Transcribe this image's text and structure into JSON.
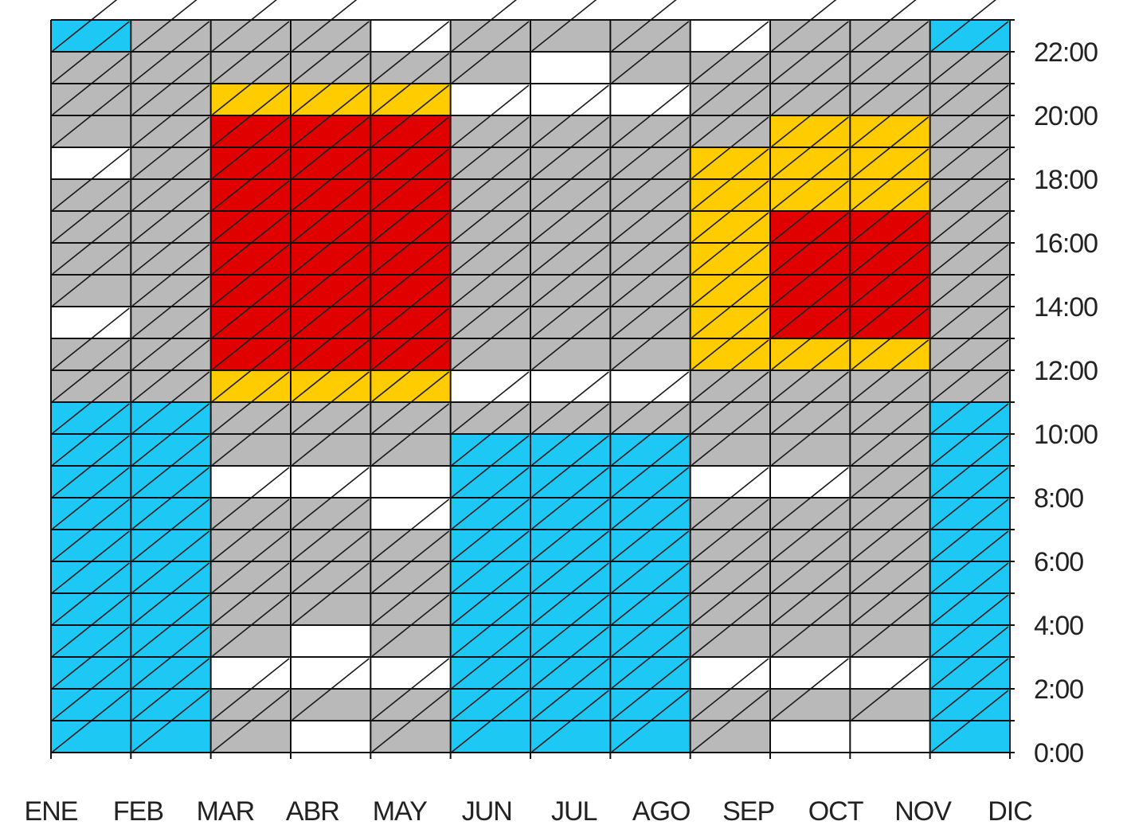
{
  "chart_data": {
    "type": "heatmap",
    "title": "",
    "xlabel": "",
    "ylabel": "",
    "x_categories": [
      "ENE",
      "FEB",
      "MAR",
      "ABR",
      "MAY",
      "JUN",
      "JUL",
      "AGO",
      "SEP",
      "OCT",
      "NOV",
      "DIC"
    ],
    "y_ticks": [
      "0:00",
      "2:00",
      "4:00",
      "6:00",
      "8:00",
      "10:00",
      "12:00",
      "14:00",
      "16:00",
      "18:00",
      "20:00",
      "22:00"
    ],
    "y_range_hours": [
      0,
      23
    ],
    "y_axis_side": "right",
    "grid": true,
    "hatching": "diagonal",
    "classes": {
      "cold": "#1ec8f5",
      "neutral": "#b9b9b9",
      "comfort": "#ffffff",
      "warm": "#ffcc00",
      "hot": "#e00000"
    },
    "grid_rows_hour_start": [
      0,
      1,
      2,
      3,
      4,
      5,
      6,
      7,
      8,
      9,
      10,
      11,
      12,
      13,
      14,
      15,
      16,
      17,
      18,
      19,
      20,
      21,
      22
    ],
    "values": [
      [
        "cold",
        "cold",
        "neutral",
        "comfort",
        "neutral",
        "cold",
        "cold",
        "cold",
        "neutral",
        "comfort",
        "comfort",
        "cold"
      ],
      [
        "cold",
        "cold",
        "neutral",
        "neutral",
        "neutral",
        "cold",
        "cold",
        "cold",
        "neutral",
        "neutral",
        "neutral",
        "cold"
      ],
      [
        "cold",
        "cold",
        "comfort",
        "comfort",
        "comfort",
        "cold",
        "cold",
        "cold",
        "comfort",
        "comfort",
        "comfort",
        "cold"
      ],
      [
        "cold",
        "cold",
        "neutral",
        "comfort",
        "neutral",
        "cold",
        "cold",
        "cold",
        "neutral",
        "neutral",
        "neutral",
        "cold"
      ],
      [
        "cold",
        "cold",
        "neutral",
        "neutral",
        "neutral",
        "cold",
        "cold",
        "cold",
        "neutral",
        "neutral",
        "neutral",
        "cold"
      ],
      [
        "cold",
        "cold",
        "neutral",
        "neutral",
        "neutral",
        "cold",
        "cold",
        "cold",
        "neutral",
        "neutral",
        "neutral",
        "cold"
      ],
      [
        "cold",
        "cold",
        "neutral",
        "neutral",
        "neutral",
        "cold",
        "cold",
        "cold",
        "neutral",
        "neutral",
        "neutral",
        "cold"
      ],
      [
        "cold",
        "cold",
        "neutral",
        "neutral",
        "comfort",
        "cold",
        "cold",
        "cold",
        "neutral",
        "neutral",
        "neutral",
        "cold"
      ],
      [
        "cold",
        "cold",
        "comfort",
        "comfort",
        "comfort",
        "cold",
        "cold",
        "cold",
        "comfort",
        "comfort",
        "neutral",
        "cold"
      ],
      [
        "cold",
        "cold",
        "neutral",
        "neutral",
        "neutral",
        "cold",
        "cold",
        "cold",
        "neutral",
        "neutral",
        "neutral",
        "cold"
      ],
      [
        "cold",
        "cold",
        "neutral",
        "neutral",
        "neutral",
        "neutral",
        "neutral",
        "neutral",
        "neutral",
        "neutral",
        "neutral",
        "cold"
      ],
      [
        "neutral",
        "neutral",
        "warm",
        "warm",
        "warm",
        "comfort",
        "comfort",
        "comfort",
        "neutral",
        "neutral",
        "neutral",
        "neutral"
      ],
      [
        "neutral",
        "neutral",
        "hot",
        "hot",
        "hot",
        "neutral",
        "neutral",
        "neutral",
        "warm",
        "warm",
        "warm",
        "neutral"
      ],
      [
        "comfort",
        "neutral",
        "hot",
        "hot",
        "hot",
        "neutral",
        "neutral",
        "neutral",
        "warm",
        "hot",
        "hot",
        "neutral"
      ],
      [
        "neutral",
        "neutral",
        "hot",
        "hot",
        "hot",
        "neutral",
        "neutral",
        "neutral",
        "warm",
        "hot",
        "hot",
        "neutral"
      ],
      [
        "neutral",
        "neutral",
        "hot",
        "hot",
        "hot",
        "neutral",
        "neutral",
        "neutral",
        "warm",
        "hot",
        "hot",
        "neutral"
      ],
      [
        "neutral",
        "neutral",
        "hot",
        "hot",
        "hot",
        "neutral",
        "neutral",
        "neutral",
        "warm",
        "hot",
        "hot",
        "neutral"
      ],
      [
        "neutral",
        "neutral",
        "hot",
        "hot",
        "hot",
        "neutral",
        "neutral",
        "neutral",
        "warm",
        "warm",
        "warm",
        "neutral"
      ],
      [
        "comfort",
        "neutral",
        "hot",
        "hot",
        "hot",
        "neutral",
        "neutral",
        "neutral",
        "warm",
        "warm",
        "warm",
        "neutral"
      ],
      [
        "neutral",
        "neutral",
        "hot",
        "hot",
        "hot",
        "neutral",
        "neutral",
        "neutral",
        "neutral",
        "warm",
        "warm",
        "neutral"
      ],
      [
        "neutral",
        "neutral",
        "warm",
        "warm",
        "warm",
        "comfort",
        "comfort",
        "comfort",
        "neutral",
        "neutral",
        "neutral",
        "neutral"
      ],
      [
        "neutral",
        "neutral",
        "neutral",
        "neutral",
        "neutral",
        "neutral",
        "comfort",
        "neutral",
        "neutral",
        "neutral",
        "neutral",
        "neutral"
      ],
      [
        "cold",
        "neutral",
        "neutral",
        "neutral",
        "comfort",
        "neutral",
        "neutral",
        "neutral",
        "comfort",
        "neutral",
        "neutral",
        "cold"
      ]
    ]
  }
}
